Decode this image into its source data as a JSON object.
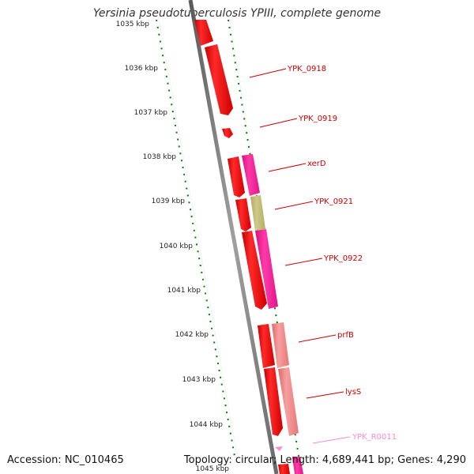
{
  "title": "Yersinia pseudotuberculosis YPIII, complete genome",
  "accession": "Accession: NC_010465",
  "topology": "Topology: circular; Length: 4,689,441 bp; Genes: 4,290",
  "ticks": [
    "1035 kbp",
    "1036 kbp",
    "1037 kbp",
    "1038 kbp",
    "1039 kbp",
    "1040 kbp",
    "1041 kbp",
    "1042 kbp",
    "1043 kbp",
    "1044 kbp",
    "1045 kbp"
  ],
  "colors": {
    "cds": "#ee0000",
    "cds_alt": "#ff1493",
    "rrna": "#f08080",
    "misc": "#bdb76b",
    "trna": "#ff8ac8",
    "backbone": "#808080",
    "ticks": "#008000",
    "label": "#cc0000"
  },
  "features": [
    {
      "label": "YPK_0918",
      "color": "label"
    },
    {
      "label": "YPK_0919",
      "color": "label"
    },
    {
      "label": "xerD",
      "color": "label"
    },
    {
      "label": "YPK_0921",
      "color": "label"
    },
    {
      "label": "YPK_0922",
      "color": "label"
    },
    {
      "label": "prfB",
      "color": "label"
    },
    {
      "label": "lysS",
      "color": "label"
    },
    {
      "label": "YPK_R0011",
      "color": "trna"
    }
  ]
}
